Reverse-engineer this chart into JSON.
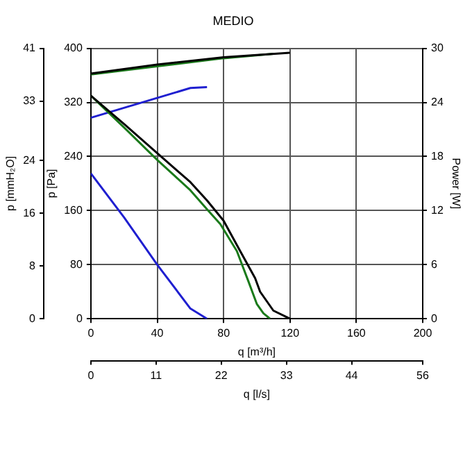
{
  "chart_data": {
    "type": "line",
    "title": "MEDIO",
    "xlabel": "q [m³/h]",
    "ylabel": "p [Pa]",
    "y2label": "Power [W]",
    "y3label": "p [mmH₂O]",
    "x2label": "q [l/s]",
    "xlim": [
      0,
      200
    ],
    "xticks": [
      0,
      40,
      80,
      120,
      160,
      200
    ],
    "ylim": [
      0,
      400
    ],
    "yticks": [
      0,
      80,
      160,
      240,
      320,
      400
    ],
    "y2lim": [
      0,
      30
    ],
    "y2ticks": [
      0,
      6,
      12,
      18,
      24,
      30
    ],
    "y3lim": [
      0,
      41
    ],
    "y3ticks": [
      0,
      8,
      16,
      24,
      33,
      41
    ],
    "x2lim": [
      0,
      56
    ],
    "x2ticks": [
      0,
      11,
      22,
      33,
      44,
      56
    ],
    "grid": true,
    "legend": false,
    "marker": "none",
    "line_style": "solid",
    "series": [
      {
        "color": "#000000",
        "x": [
          0,
          20,
          40,
          60,
          70,
          80,
          90,
          99,
          102,
          110,
          120
        ],
        "values": [
          330,
          288,
          245,
          202,
          175,
          145,
          100,
          60,
          40,
          12,
          0
        ]
      },
      {
        "color": "#1a7a1a",
        "x": [
          0,
          20,
          40,
          60,
          70,
          78,
          88,
          95,
          100,
          104,
          108
        ],
        "values": [
          330,
          283,
          235,
          190,
          162,
          140,
          100,
          55,
          22,
          8,
          0
        ]
      },
      {
        "color": "#1f1fd0",
        "x": [
          0,
          20,
          40,
          60,
          70
        ],
        "values": [
          215,
          150,
          80,
          15,
          0
        ]
      },
      {
        "color": "#000000",
        "axis": "y2",
        "x": [
          0,
          40,
          80,
          120
        ],
        "values": [
          27.2,
          28.2,
          29.0,
          29.5
        ]
      },
      {
        "color": "#1a7a1a",
        "axis": "y2",
        "x": [
          0,
          40,
          80,
          110
        ],
        "values": [
          27.1,
          28.0,
          28.9,
          29.4
        ]
      },
      {
        "color": "#1f1fd0",
        "axis": "y2",
        "x": [
          0,
          60,
          70
        ],
        "values": [
          22.3,
          25.6,
          25.7
        ]
      }
    ]
  }
}
